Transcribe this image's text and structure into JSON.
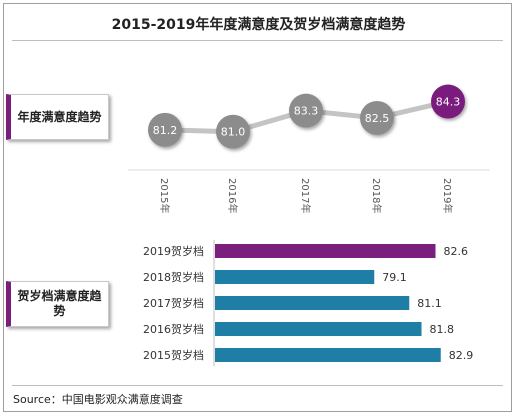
{
  "title": "2015-2019年年度满意度及贺岁档满意度趋势",
  "labels": {
    "annual": "年度满意度趋势",
    "spring": "贺岁档满意度趋势"
  },
  "source": "Source：中国电影观众满意度调查",
  "colors": {
    "gray_point": "#8c8c8c",
    "purple": "#7a1f7e",
    "teal": "#1f7ea5",
    "line": "#c4c4c4"
  },
  "chart_data": [
    {
      "type": "line",
      "categories": [
        "2015年",
        "2016年",
        "2017年",
        "2018年",
        "2019年"
      ],
      "series": [
        {
          "values": [
            81.2,
            81.0,
            83.3,
            82.5,
            84.3
          ]
        }
      ],
      "highlight_index": 4
    },
    {
      "type": "bar",
      "orientation": "horizontal",
      "categories": [
        "2019贺岁档",
        "2018贺岁档",
        "2017贺岁档",
        "2016贺岁档",
        "2015贺岁档"
      ],
      "values": [
        82.6,
        79.1,
        81.1,
        81.8,
        82.9
      ],
      "highlight_index": 0
    }
  ]
}
